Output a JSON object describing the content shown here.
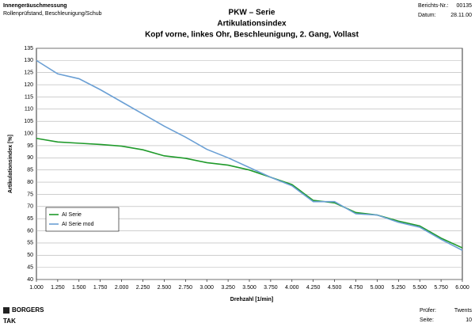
{
  "page": {
    "header_left": [
      "Innengeräuschmessung",
      "Rollenprüfstand, Beschleunigung/Schub"
    ],
    "report_label": "Berichts-Nr.:",
    "report_no": "00135",
    "date_label": "Datum:",
    "date": "28.11.00",
    "logo": "BORGERS",
    "dept": "TAK",
    "examiner_label": "Prüfer:",
    "examiner": "Twents",
    "page_label": "Seite:",
    "page_no": "10"
  },
  "chart_data": {
    "type": "line",
    "title": "PKW – Serie",
    "subtitle": "Artikulationsindex",
    "subtitle2": "Kopf vorne, linkes Ohr, Beschleunigung, 2. Gang, Vollast",
    "xlabel": "Drehzahl [1/min]",
    "ylabel": "Artikulationsindex [%]",
    "x": [
      1000,
      1250,
      1500,
      1750,
      2000,
      2250,
      2500,
      2750,
      3000,
      3250,
      3500,
      3750,
      4000,
      4250,
      4500,
      4750,
      5000,
      5250,
      5500,
      5750,
      6000
    ],
    "series": [
      {
        "name": "AI Serie",
        "color": "#1f9a2a",
        "values": [
          98,
          96.5,
          96,
          95.5,
          94.8,
          93.3,
          90.8,
          89.8,
          88,
          87,
          85,
          82,
          79,
          72.5,
          71.5,
          67.5,
          66.5,
          64,
          62,
          57,
          53
        ]
      },
      {
        "name": "AI Serie mod",
        "color": "#6a9fd4",
        "values": [
          130,
          124.5,
          122.5,
          118,
          113,
          108,
          103,
          98.5,
          93.5,
          90,
          86,
          82,
          78.5,
          72,
          72,
          67,
          66.5,
          63.5,
          61.5,
          56.5,
          52
        ]
      }
    ],
    "xlim": [
      1000,
      6000
    ],
    "xticks": [
      {
        "value": 1000,
        "label": "1.000"
      },
      {
        "value": 1250,
        "label": "1.250"
      },
      {
        "value": 1500,
        "label": "1.500"
      },
      {
        "value": 1750,
        "label": "1.750"
      },
      {
        "value": 2000,
        "label": "2.000"
      },
      {
        "value": 2250,
        "label": "2.250"
      },
      {
        "value": 2500,
        "label": "2.500"
      },
      {
        "value": 2750,
        "label": "2.750"
      },
      {
        "value": 3000,
        "label": "3.000"
      },
      {
        "value": 3250,
        "label": "3.250"
      },
      {
        "value": 3500,
        "label": "3.500"
      },
      {
        "value": 3750,
        "label": "3.750"
      },
      {
        "value": 4000,
        "label": "4.000"
      },
      {
        "value": 4250,
        "label": "4.250"
      },
      {
        "value": 4500,
        "label": "4.500"
      },
      {
        "value": 4750,
        "label": "4.750"
      },
      {
        "value": 5000,
        "label": "5.000"
      },
      {
        "value": 5250,
        "label": "5.250"
      },
      {
        "value": 5500,
        "label": "5.500"
      },
      {
        "value": 5750,
        "label": "5.750"
      },
      {
        "value": 6000,
        "label": "6.000"
      }
    ],
    "ylim": [
      40,
      135
    ],
    "yticks": [
      40,
      45,
      50,
      55,
      60,
      65,
      70,
      75,
      80,
      85,
      90,
      95,
      100,
      105,
      110,
      115,
      120,
      125,
      130,
      135
    ],
    "grid": true,
    "legend": "lower-left"
  }
}
